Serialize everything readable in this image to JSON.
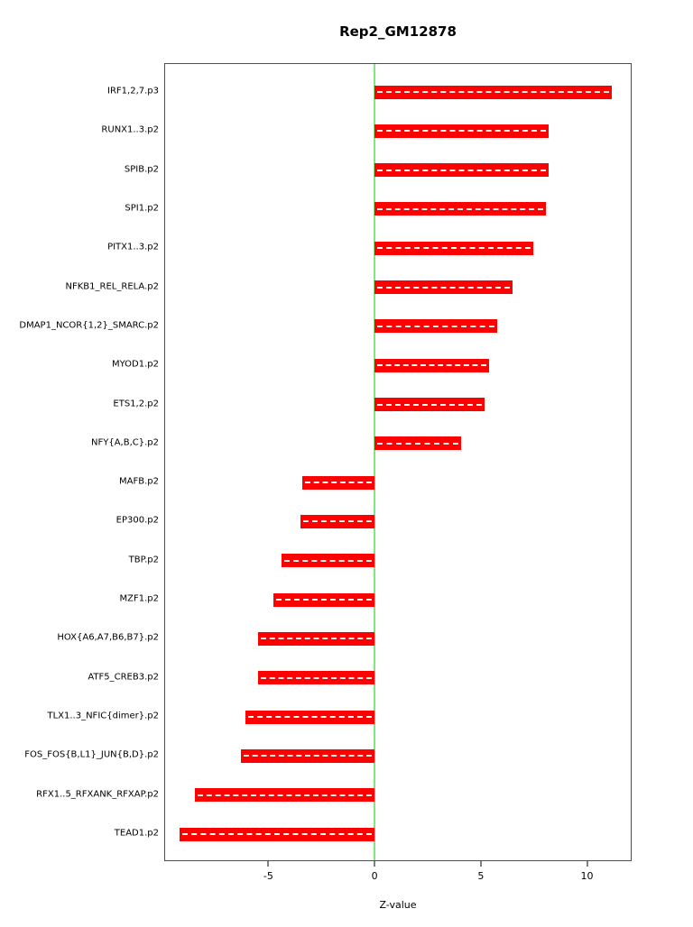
{
  "chart_data": {
    "type": "bar",
    "orientation": "horizontal",
    "title": "Rep2_GM12878",
    "xlabel": "Z-value",
    "xlim": [
      -9.9,
      12.1
    ],
    "xticks": [
      -5,
      0,
      5,
      10
    ],
    "grid": false,
    "legend": false,
    "bar_color": "#ff0000",
    "zero_line_color": "#00cc00",
    "categories": [
      "IRF1,2,7.p3",
      "RUNX1..3.p2",
      "SPIB.p2",
      "SPI1.p2",
      "PITX1..3.p2",
      "NFKB1_REL_RELA.p2",
      "DMAP1_NCOR{1,2}_SMARC.p2",
      "MYOD1.p2",
      "ETS1,2.p2",
      "NFY{A,B,C}.p2",
      "MAFB.p2",
      "EP300.p2",
      "TBP.p2",
      "MZF1.p2",
      "HOX{A6,A7,B6,B7}.p2",
      "ATF5_CREB3.p2",
      "TLX1..3_NFIC{dimer}.p2",
      "FOS_FOS{B,L1}_JUN{B,D}.p2",
      "RFX1..5_RFXANK_RFXAP.p2",
      "TEAD1.p2"
    ],
    "values": [
      11.2,
      8.2,
      8.2,
      8.1,
      7.5,
      6.5,
      5.8,
      5.4,
      5.2,
      4.1,
      -3.4,
      -3.5,
      -4.4,
      -4.8,
      -5.5,
      -5.5,
      -6.1,
      -6.3,
      -8.5,
      -9.2
    ]
  }
}
